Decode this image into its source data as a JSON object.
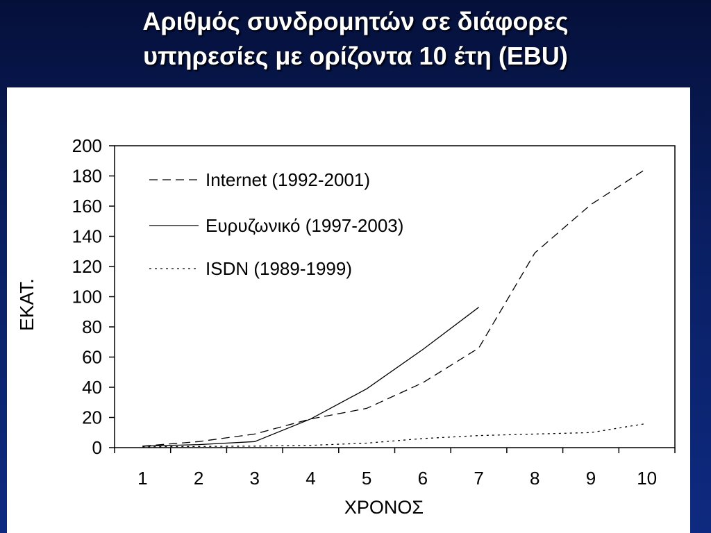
{
  "slide": {
    "title_line1": "Αριθμός συνδρομητών σε διάφορες",
    "title_line2": "υπηρεσίες με ορίζοντα 10 έτη (EBU)"
  },
  "chart_data": {
    "type": "line",
    "title": "Αριθμός συνδρομητών σε διάφορες υπηρεσίες με ορίζοντα 10 έτη (EBU)",
    "xlabel": "ΧΡΟΝΟΣ",
    "ylabel": "ΕΚΑΤ.",
    "ylim": [
      0,
      200
    ],
    "xlim": [
      0.5,
      10.5
    ],
    "y_ticks": [
      0,
      20,
      40,
      60,
      80,
      100,
      120,
      140,
      160,
      180,
      200
    ],
    "x_ticks": [
      1,
      2,
      3,
      4,
      5,
      6,
      7,
      8,
      9,
      10
    ],
    "legend_position": "top-left",
    "grid": false,
    "series": [
      {
        "name": "Internet (1992-2001)",
        "style": "dashed",
        "x": [
          1,
          2,
          3,
          4,
          5,
          6,
          7,
          8,
          9,
          10
        ],
        "y": [
          1,
          4,
          9,
          19,
          26,
          43,
          66,
          129,
          161,
          185
        ]
      },
      {
        "name": "Ευρυζωνικό (1997-2003)",
        "style": "solid",
        "x": [
          1,
          2,
          3,
          4,
          5,
          6,
          7
        ],
        "y": [
          1,
          2,
          4,
          19,
          39,
          65,
          93
        ]
      },
      {
        "name": "ISDN (1989-1999)",
        "style": "dotted",
        "x": [
          1,
          2,
          3,
          4,
          5,
          6,
          7,
          8,
          9,
          10
        ],
        "y": [
          0.5,
          0.8,
          1,
          1.5,
          3,
          6,
          8,
          9,
          10,
          16
        ]
      }
    ]
  }
}
